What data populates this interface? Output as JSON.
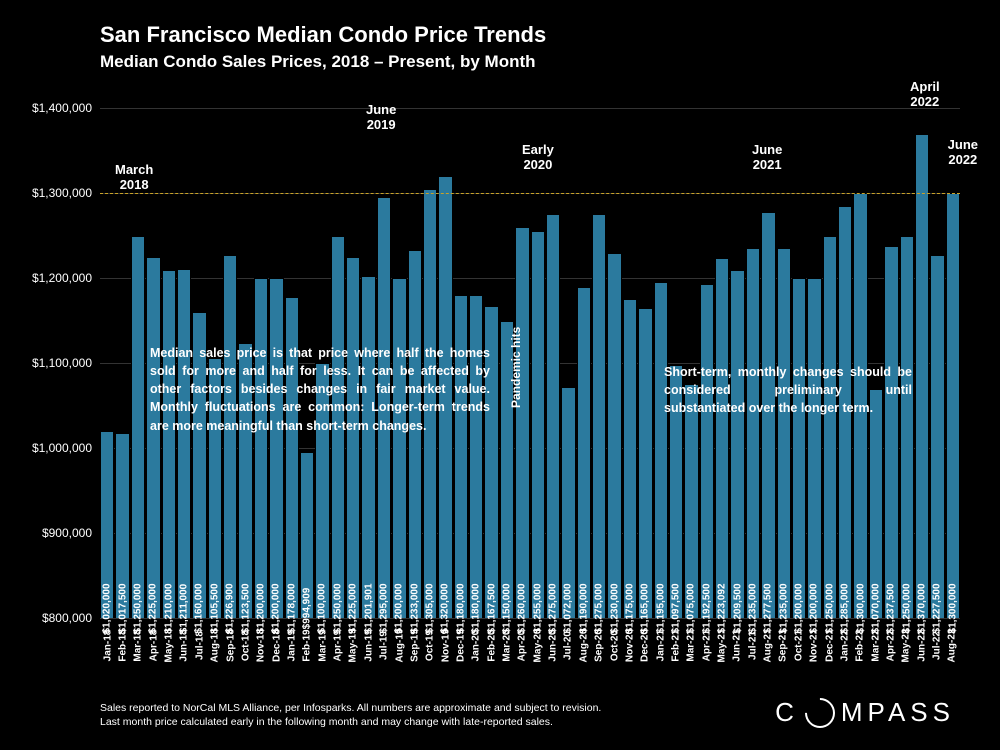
{
  "title": "San Francisco Median Condo Price Trends",
  "subtitle": "Median Condo Sales Prices, 2018 – Present, by Month",
  "chart": {
    "type": "bar",
    "bar_color": "#2b7a9e",
    "background_color": "#000000",
    "grid_color": "#333333",
    "ref_line_color": "#c9a227",
    "ref_line_value": 1300000,
    "text_color": "#ffffff",
    "ymin": 800000,
    "ymax": 1400000,
    "ytick_step": 100000,
    "yticks": [
      "$800,000",
      "$900,000",
      "$1,000,000",
      "$1,100,000",
      "$1,200,000",
      "$1,300,000",
      "$1,400,000"
    ],
    "bar_font_size": 10,
    "title_font_size": 22,
    "subtitle_font_size": 17,
    "data": [
      {
        "label": "Jan-18",
        "value": 1020000,
        "display": "$1,020,000"
      },
      {
        "label": "Feb-18",
        "value": 1017500,
        "display": "$1,017,500"
      },
      {
        "label": "Mar-18",
        "value": 1250000,
        "display": "$1,250,000"
      },
      {
        "label": "Apr-18",
        "value": 1225000,
        "display": "$1,225,000"
      },
      {
        "label": "May-18",
        "value": 1210000,
        "display": "$1,210,000"
      },
      {
        "label": "Jun-18",
        "value": 1211000,
        "display": "$1,211,000"
      },
      {
        "label": "Jul-18",
        "value": 1160000,
        "display": "$1,160,000"
      },
      {
        "label": "Aug-18",
        "value": 1105500,
        "display": "$1,105,500"
      },
      {
        "label": "Sep-18",
        "value": 1226900,
        "display": "$1,226,900"
      },
      {
        "label": "Oct-18",
        "value": 1123500,
        "display": "$1,123,500"
      },
      {
        "label": "Nov-18",
        "value": 1200000,
        "display": "$1,200,000"
      },
      {
        "label": "Dec-18",
        "value": 1200000,
        "display": "$1,200,000"
      },
      {
        "label": "Jan-19",
        "value": 1178000,
        "display": "$1,178,000"
      },
      {
        "label": "Feb-19",
        "value": 994909,
        "display": "$994,909"
      },
      {
        "label": "Mar-19",
        "value": 1100000,
        "display": "$1,100,000"
      },
      {
        "label": "Apr-19",
        "value": 1250000,
        "display": "$1,250,000"
      },
      {
        "label": "May-19",
        "value": 1225000,
        "display": "$1,225,000"
      },
      {
        "label": "Jun-19",
        "value": 1201901,
        "display": "$1,201,901"
      },
      {
        "label": "Jul-19",
        "value": 1295000,
        "display": "$1,295,000"
      },
      {
        "label": "Aug-19",
        "value": 1200000,
        "display": "$1,200,000"
      },
      {
        "label": "Sep-19",
        "value": 1233000,
        "display": "$1,233,000"
      },
      {
        "label": "Oct-19",
        "value": 1305000,
        "display": "$1,305,000"
      },
      {
        "label": "Nov-19",
        "value": 1320000,
        "display": "$1,320,000"
      },
      {
        "label": "Dec-19",
        "value": 1180000,
        "display": "$1,180,000"
      },
      {
        "label": "Jan-20",
        "value": 1180000,
        "display": "$1,180,000"
      },
      {
        "label": "Feb-20",
        "value": 1167500,
        "display": "$1,167,500"
      },
      {
        "label": "Mar-20",
        "value": 1150000,
        "display": "$1,150,000"
      },
      {
        "label": "Apr-20",
        "value": 1260000,
        "display": "$1,260,000"
      },
      {
        "label": "May-20",
        "value": 1255000,
        "display": "$1,255,000"
      },
      {
        "label": "Jun-20",
        "value": 1275000,
        "display": "$1,275,000"
      },
      {
        "label": "Jul-20",
        "value": 1072000,
        "display": "$1,072,000"
      },
      {
        "label": "Aug-20",
        "value": 1190000,
        "display": "$1,190,000"
      },
      {
        "label": "Sep-20",
        "value": 1275000,
        "display": "$1,275,000"
      },
      {
        "label": "Oct-20",
        "value": 1230000,
        "display": "$1,230,000"
      },
      {
        "label": "Nov-20",
        "value": 1175000,
        "display": "$1,175,000"
      },
      {
        "label": "Dec-20",
        "value": 1165000,
        "display": "$1,165,000"
      },
      {
        "label": "Jan-21",
        "value": 1195000,
        "display": "$1,195,000"
      },
      {
        "label": "Feb-21",
        "value": 1097500,
        "display": "$1,097,500"
      },
      {
        "label": "Mar-21",
        "value": 1075000,
        "display": "$1,075,000"
      },
      {
        "label": "Apr-21",
        "value": 1192500,
        "display": "$1,192,500"
      },
      {
        "label": "May-21",
        "value": 1223092,
        "display": "$1,223,092"
      },
      {
        "label": "Jun-21",
        "value": 1209500,
        "display": "$1,209,500"
      },
      {
        "label": "Jul-21",
        "value": 1235000,
        "display": "$1,235,000"
      },
      {
        "label": "Aug-21",
        "value": 1277500,
        "display": "$1,277,500"
      },
      {
        "label": "Sep-21",
        "value": 1235000,
        "display": "$1,235,000"
      },
      {
        "label": "Oct-21",
        "value": 1200000,
        "display": "$1,200,000"
      },
      {
        "label": "Nov-21",
        "value": 1200000,
        "display": "$1,200,000"
      },
      {
        "label": "Dec-21",
        "value": 1250000,
        "display": "$1,250,000"
      },
      {
        "label": "Jan-22",
        "value": 1285000,
        "display": "$1,285,000"
      },
      {
        "label": "Feb-22",
        "value": 1300000,
        "display": "$1,300,000"
      },
      {
        "label": "Mar-22",
        "value": 1070000,
        "display": "$1,070,000"
      },
      {
        "label": "Apr-22",
        "value": 1237500,
        "display": "$1,237,500"
      },
      {
        "label": "May-22",
        "value": 1250000,
        "display": "$1,250,000"
      },
      {
        "label": "Jun-22",
        "value": 1370000,
        "display": "$1,370,000"
      },
      {
        "label": "Jul-22",
        "value": 1227500,
        "display": "$1,227,500"
      },
      {
        "label": "Aug-22",
        "value": 1300000,
        "display": "$1,300,000"
      }
    ]
  },
  "annotations": {
    "march2018": "March\n2018",
    "june2019": "June\n2019",
    "early2020": "Early\n2020",
    "june2021": "June\n2021",
    "april2022": "April\n2022",
    "june2022": "June\n2022",
    "pandemic": "Pandemic hits"
  },
  "textboxes": {
    "left": "Median sales price is that price where half the homes sold for more and half for less. It can be affected by other factors besides changes in fair market value. Monthly fluctuations are common: Longer-term trends are more meaningful than short-term changes.",
    "right": "Short-term, monthly changes should be considered preliminary until substantiated over the longer term."
  },
  "footnote": "Sales reported to NorCal MLS Alliance, per Infosparks. All numbers are approximate and subject to revision.\nLast month price calculated early in the following month and may change with late-reported sales.",
  "logo": "COMPASS"
}
